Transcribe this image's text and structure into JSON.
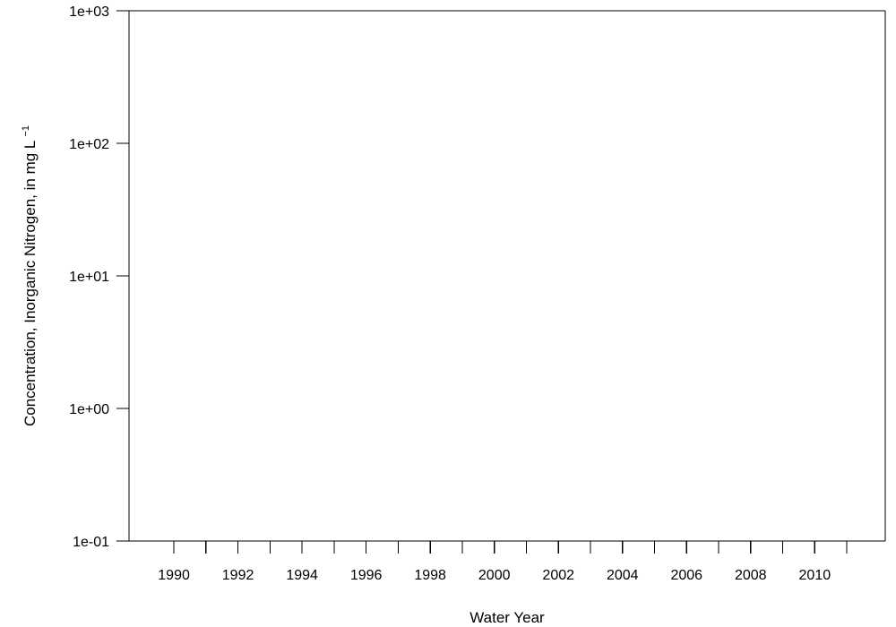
{
  "chart_data": {
    "type": "scatter",
    "title": "",
    "xlabel": "Water Year",
    "ylabel_main": "Concentration, Inorganic Nitrogen, in mg  L",
    "ylabel_exponent": "−1",
    "xlim": [
      1988.6,
      2012.2
    ],
    "ylim": [
      0.1,
      1000
    ],
    "y_scale": "log",
    "grid": false,
    "legend": "none",
    "x_major_ticks": [
      1990,
      1992,
      1994,
      1996,
      1998,
      2000,
      2002,
      2004,
      2006,
      2008,
      2010
    ],
    "x_minor_ticks": [
      1991,
      1993,
      1995,
      1997,
      1999,
      2001,
      2003,
      2005,
      2007,
      2009,
      2011
    ],
    "x_tick_labels": [
      "1990",
      "1992",
      "1994",
      "1996",
      "1998",
      "2000",
      "2002",
      "2004",
      "2006",
      "2008",
      "2010"
    ],
    "y_ticks": [
      0.1,
      1,
      10,
      100,
      1000
    ],
    "y_tick_labels": [
      "1e-01",
      "1e+00",
      "1e+01",
      "1e+02",
      "1e+03"
    ],
    "series": []
  },
  "colors": {
    "axis": "#000000",
    "background": "#ffffff"
  }
}
